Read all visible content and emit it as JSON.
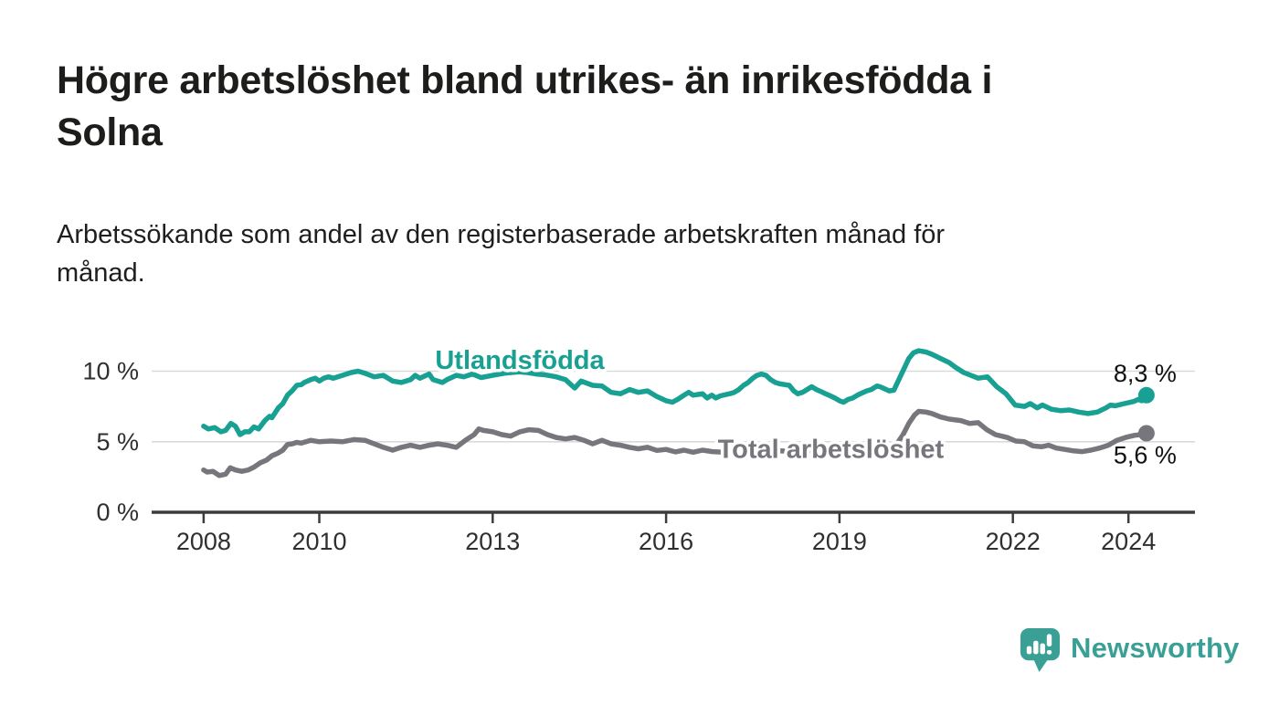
{
  "title": {
    "lines": [
      "Högre arbetslöshet bland utrikes- än inrikesfödda i",
      "Solna"
    ]
  },
  "subtitle": {
    "lines": [
      "Arbetssökande som andel av den registerbaserade arbetskraften månad för",
      "månad."
    ]
  },
  "branding": {
    "logo_text": "Newsworthy"
  },
  "colors": {
    "teal": "#18a092",
    "gray": "#77767c",
    "grid": "#dadada",
    "axis": "#3c3c3c",
    "tick_text": "#2f2f2f",
    "title_text": "#1d1d1b",
    "logo_teal": "#3aa096"
  },
  "chart_data": {
    "type": "line",
    "title": "Högre arbetslöshet bland utrikes- än inrikesfödda i Solna",
    "subtitle": "Arbetssökande som andel av den registerbaserade arbetskraften månad för månad.",
    "xlabel": "",
    "ylabel": "",
    "legend_position": "inline-labels",
    "x_axis": {
      "ticks": [
        2008,
        2010,
        2013,
        2016,
        2019,
        2022,
        2024
      ],
      "lim": [
        2007.1,
        2025.15
      ]
    },
    "y_axis": {
      "ticks": [
        {
          "v": 0,
          "label": "0 %"
        },
        {
          "v": 5,
          "label": "5 %"
        },
        {
          "v": 10,
          "label": "10 %"
        }
      ],
      "lim": [
        0,
        12.5
      ],
      "grid": true
    },
    "series": [
      {
        "name": "Utlandsfödda",
        "slug": "utlandsfodda",
        "color": "#18a092",
        "label_pos": [
          2013.47,
          10.15
        ],
        "end_label": "8,3 %",
        "end_value": 8.3,
        "end_label_offset": [
          33,
          -15
        ],
        "points": [
          [
            2008.0,
            6.1
          ],
          [
            2008.08,
            5.9
          ],
          [
            2008.19,
            6.0
          ],
          [
            2008.3,
            5.7
          ],
          [
            2008.38,
            5.8
          ],
          [
            2008.47,
            6.3
          ],
          [
            2008.55,
            6.1
          ],
          [
            2008.63,
            5.5
          ],
          [
            2008.71,
            5.7
          ],
          [
            2008.79,
            5.7
          ],
          [
            2008.87,
            6.05
          ],
          [
            2008.95,
            5.9
          ],
          [
            2009.06,
            6.5
          ],
          [
            2009.14,
            6.8
          ],
          [
            2009.18,
            6.7
          ],
          [
            2009.29,
            7.4
          ],
          [
            2009.37,
            7.7
          ],
          [
            2009.45,
            8.3
          ],
          [
            2009.53,
            8.6
          ],
          [
            2009.61,
            9.0
          ],
          [
            2009.69,
            9.05
          ],
          [
            2009.74,
            9.2
          ],
          [
            2009.85,
            9.4
          ],
          [
            2009.93,
            9.5
          ],
          [
            2010.0,
            9.3
          ],
          [
            2010.08,
            9.5
          ],
          [
            2010.16,
            9.6
          ],
          [
            2010.24,
            9.5
          ],
          [
            2010.4,
            9.7
          ],
          [
            2010.55,
            9.9
          ],
          [
            2010.67,
            10.0
          ],
          [
            2010.79,
            9.85
          ],
          [
            2010.95,
            9.6
          ],
          [
            2011.11,
            9.7
          ],
          [
            2011.27,
            9.3
          ],
          [
            2011.42,
            9.2
          ],
          [
            2011.58,
            9.4
          ],
          [
            2011.66,
            9.7
          ],
          [
            2011.74,
            9.5
          ],
          [
            2011.9,
            9.8
          ],
          [
            2011.97,
            9.4
          ],
          [
            2012.13,
            9.2
          ],
          [
            2012.21,
            9.4
          ],
          [
            2012.37,
            9.7
          ],
          [
            2012.5,
            9.6
          ],
          [
            2012.65,
            9.8
          ],
          [
            2012.8,
            9.55
          ],
          [
            2013.0,
            9.7
          ],
          [
            2013.2,
            9.85
          ],
          [
            2013.45,
            9.95
          ],
          [
            2013.6,
            9.9
          ],
          [
            2013.75,
            9.8
          ],
          [
            2013.9,
            9.75
          ],
          [
            2014.1,
            9.6
          ],
          [
            2014.26,
            9.4
          ],
          [
            2014.42,
            8.8
          ],
          [
            2014.53,
            9.3
          ],
          [
            2014.73,
            9.0
          ],
          [
            2014.89,
            8.95
          ],
          [
            2015.05,
            8.5
          ],
          [
            2015.21,
            8.4
          ],
          [
            2015.37,
            8.7
          ],
          [
            2015.52,
            8.5
          ],
          [
            2015.68,
            8.6
          ],
          [
            2015.84,
            8.2
          ],
          [
            2016.0,
            7.9
          ],
          [
            2016.11,
            7.8
          ],
          [
            2016.2,
            8.0
          ],
          [
            2016.31,
            8.3
          ],
          [
            2016.39,
            8.5
          ],
          [
            2016.47,
            8.3
          ],
          [
            2016.63,
            8.4
          ],
          [
            2016.71,
            8.1
          ],
          [
            2016.79,
            8.3
          ],
          [
            2016.86,
            8.1
          ],
          [
            2016.94,
            8.25
          ],
          [
            2017.1,
            8.4
          ],
          [
            2017.18,
            8.5
          ],
          [
            2017.26,
            8.7
          ],
          [
            2017.34,
            9.0
          ],
          [
            2017.42,
            9.2
          ],
          [
            2017.5,
            9.5
          ],
          [
            2017.57,
            9.7
          ],
          [
            2017.65,
            9.8
          ],
          [
            2017.73,
            9.7
          ],
          [
            2017.81,
            9.4
          ],
          [
            2017.89,
            9.2
          ],
          [
            2017.97,
            9.1
          ],
          [
            2018.05,
            9.05
          ],
          [
            2018.13,
            9.0
          ],
          [
            2018.21,
            8.6
          ],
          [
            2018.28,
            8.4
          ],
          [
            2018.36,
            8.5
          ],
          [
            2018.44,
            8.7
          ],
          [
            2018.52,
            8.9
          ],
          [
            2018.6,
            8.7
          ],
          [
            2018.68,
            8.55
          ],
          [
            2018.76,
            8.4
          ],
          [
            2018.84,
            8.25
          ],
          [
            2018.92,
            8.1
          ],
          [
            2019.0,
            7.9
          ],
          [
            2019.07,
            7.8
          ],
          [
            2019.15,
            8.0
          ],
          [
            2019.23,
            8.1
          ],
          [
            2019.31,
            8.3
          ],
          [
            2019.39,
            8.45
          ],
          [
            2019.47,
            8.6
          ],
          [
            2019.55,
            8.7
          ],
          [
            2019.65,
            8.95
          ],
          [
            2019.7,
            8.9
          ],
          [
            2019.78,
            8.75
          ],
          [
            2019.86,
            8.6
          ],
          [
            2019.94,
            8.65
          ],
          [
            2020.05,
            9.6
          ],
          [
            2020.13,
            10.3
          ],
          [
            2020.2,
            10.9
          ],
          [
            2020.28,
            11.3
          ],
          [
            2020.37,
            11.45
          ],
          [
            2020.5,
            11.35
          ],
          [
            2020.6,
            11.2
          ],
          [
            2020.75,
            10.9
          ],
          [
            2020.9,
            10.6
          ],
          [
            2021.0,
            10.3
          ],
          [
            2021.15,
            9.9
          ],
          [
            2021.4,
            9.5
          ],
          [
            2021.56,
            9.6
          ],
          [
            2021.72,
            8.9
          ],
          [
            2021.88,
            8.4
          ],
          [
            2022.04,
            7.6
          ],
          [
            2022.2,
            7.5
          ],
          [
            2022.3,
            7.7
          ],
          [
            2022.42,
            7.4
          ],
          [
            2022.51,
            7.6
          ],
          [
            2022.67,
            7.3
          ],
          [
            2022.83,
            7.2
          ],
          [
            2022.98,
            7.25
          ],
          [
            2023.14,
            7.1
          ],
          [
            2023.3,
            7.0
          ],
          [
            2023.46,
            7.1
          ],
          [
            2023.61,
            7.4
          ],
          [
            2023.69,
            7.6
          ],
          [
            2023.77,
            7.55
          ],
          [
            2023.93,
            7.7
          ],
          [
            2024.09,
            7.85
          ],
          [
            2024.17,
            8.0
          ],
          [
            2024.23,
            7.9
          ],
          [
            2024.31,
            8.3
          ]
        ]
      },
      {
        "name": "Total arbetslöshet",
        "slug": "total-arbetsloshet",
        "color": "#77767c",
        "label_pos": [
          2018.85,
          3.85
        ],
        "end_label": "5,6 %",
        "end_value": 5.6,
        "end_label_offset": [
          33,
          33
        ],
        "points": [
          [
            2008.0,
            3.0
          ],
          [
            2008.06,
            2.85
          ],
          [
            2008.16,
            2.9
          ],
          [
            2008.27,
            2.6
          ],
          [
            2008.38,
            2.7
          ],
          [
            2008.46,
            3.15
          ],
          [
            2008.55,
            3.0
          ],
          [
            2008.66,
            2.9
          ],
          [
            2008.77,
            3.0
          ],
          [
            2008.87,
            3.2
          ],
          [
            2008.98,
            3.5
          ],
          [
            2009.09,
            3.7
          ],
          [
            2009.18,
            4.0
          ],
          [
            2009.29,
            4.2
          ],
          [
            2009.37,
            4.4
          ],
          [
            2009.45,
            4.8
          ],
          [
            2009.53,
            4.85
          ],
          [
            2009.61,
            4.95
          ],
          [
            2009.69,
            4.9
          ],
          [
            2009.85,
            5.1
          ],
          [
            2010.0,
            5.0
          ],
          [
            2010.2,
            5.05
          ],
          [
            2010.4,
            5.0
          ],
          [
            2010.6,
            5.15
          ],
          [
            2010.79,
            5.1
          ],
          [
            2010.95,
            4.85
          ],
          [
            2011.11,
            4.6
          ],
          [
            2011.27,
            4.4
          ],
          [
            2011.42,
            4.6
          ],
          [
            2011.58,
            4.75
          ],
          [
            2011.74,
            4.6
          ],
          [
            2011.9,
            4.75
          ],
          [
            2012.05,
            4.85
          ],
          [
            2012.21,
            4.75
          ],
          [
            2012.37,
            4.6
          ],
          [
            2012.53,
            5.1
          ],
          [
            2012.68,
            5.5
          ],
          [
            2012.76,
            5.9
          ],
          [
            2012.84,
            5.8
          ],
          [
            2013.0,
            5.7
          ],
          [
            2013.16,
            5.5
          ],
          [
            2013.31,
            5.4
          ],
          [
            2013.47,
            5.7
          ],
          [
            2013.63,
            5.85
          ],
          [
            2013.79,
            5.8
          ],
          [
            2013.95,
            5.5
          ],
          [
            2014.1,
            5.3
          ],
          [
            2014.26,
            5.2
          ],
          [
            2014.42,
            5.3
          ],
          [
            2014.58,
            5.1
          ],
          [
            2014.73,
            4.85
          ],
          [
            2014.89,
            5.1
          ],
          [
            2015.05,
            4.85
          ],
          [
            2015.21,
            4.75
          ],
          [
            2015.37,
            4.6
          ],
          [
            2015.52,
            4.5
          ],
          [
            2015.68,
            4.6
          ],
          [
            2015.84,
            4.38
          ],
          [
            2016.0,
            4.45
          ],
          [
            2016.16,
            4.28
          ],
          [
            2016.31,
            4.4
          ],
          [
            2016.47,
            4.25
          ],
          [
            2016.63,
            4.4
          ],
          [
            2016.8,
            4.3
          ],
          [
            2017.0,
            4.25
          ],
          [
            2017.2,
            4.4
          ],
          [
            2017.4,
            4.28
          ],
          [
            2017.6,
            4.4
          ],
          [
            2017.8,
            4.3
          ],
          [
            2018.0,
            4.35
          ],
          [
            2018.2,
            4.28
          ],
          [
            2018.4,
            4.38
          ],
          [
            2018.6,
            4.3
          ],
          [
            2018.8,
            4.35
          ],
          [
            2019.0,
            4.3
          ],
          [
            2019.2,
            4.33
          ],
          [
            2019.4,
            4.3
          ],
          [
            2019.55,
            4.4
          ],
          [
            2019.7,
            4.45
          ],
          [
            2019.9,
            4.55
          ],
          [
            2020.0,
            4.9
          ],
          [
            2020.1,
            5.5
          ],
          [
            2020.2,
            6.3
          ],
          [
            2020.3,
            6.9
          ],
          [
            2020.37,
            7.15
          ],
          [
            2020.5,
            7.1
          ],
          [
            2020.6,
            7.0
          ],
          [
            2020.75,
            6.75
          ],
          [
            2020.9,
            6.6
          ],
          [
            2021.1,
            6.5
          ],
          [
            2021.25,
            6.3
          ],
          [
            2021.4,
            6.35
          ],
          [
            2021.55,
            5.85
          ],
          [
            2021.7,
            5.5
          ],
          [
            2021.9,
            5.3
          ],
          [
            2022.05,
            5.05
          ],
          [
            2022.2,
            5.0
          ],
          [
            2022.35,
            4.7
          ],
          [
            2022.5,
            4.65
          ],
          [
            2022.62,
            4.75
          ],
          [
            2022.75,
            4.55
          ],
          [
            2022.9,
            4.45
          ],
          [
            2023.05,
            4.35
          ],
          [
            2023.2,
            4.3
          ],
          [
            2023.35,
            4.4
          ],
          [
            2023.5,
            4.55
          ],
          [
            2023.65,
            4.75
          ],
          [
            2023.8,
            5.1
          ],
          [
            2023.95,
            5.3
          ],
          [
            2024.1,
            5.45
          ],
          [
            2024.2,
            5.5
          ],
          [
            2024.31,
            5.6
          ]
        ]
      }
    ]
  }
}
